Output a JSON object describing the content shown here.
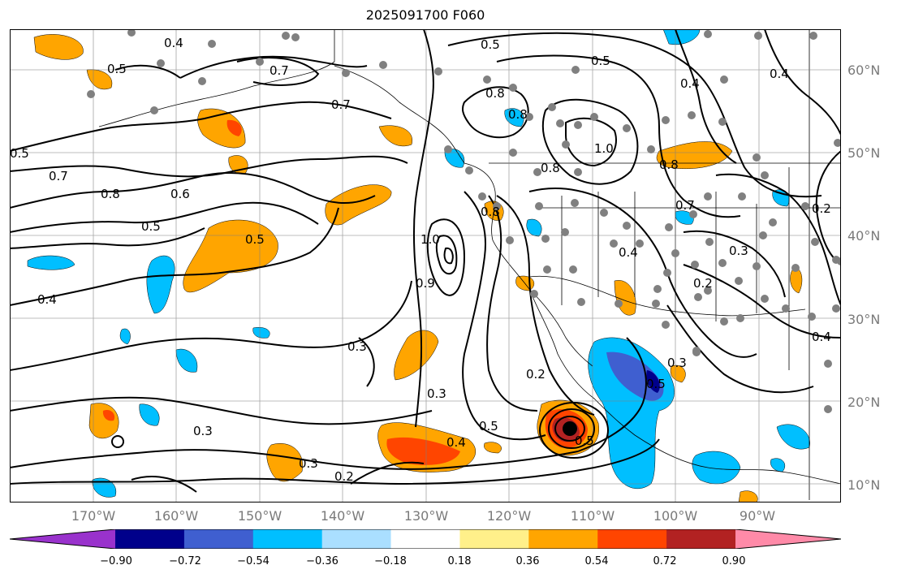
{
  "title": "2025091700 F060",
  "map": {
    "lat_labels": [
      "60°N",
      "50°N",
      "40°N",
      "30°N",
      "20°N",
      "10°N"
    ],
    "lon_labels": [
      "170°W",
      "160°W",
      "150°W",
      "140°W",
      "130°W",
      "120°W",
      "110°W",
      "100°W",
      "90°W"
    ],
    "contour_labels": [
      "0.4",
      "0.5",
      "0.7",
      "0.5",
      "0.7",
      "0.8",
      "0.6",
      "0.5",
      "0.4",
      "0.5",
      "0.8",
      "0.7",
      "0.8",
      "0.8",
      "0.5",
      "1.0",
      "0.5",
      "0.4",
      "0.8",
      "0.7",
      "0.3",
      "0.2",
      "1.0",
      "0.9",
      "0.3",
      "0.3",
      "0.2",
      "0.3",
      "0.5",
      "0.4",
      "0.5",
      "0.3",
      "0.3",
      "0.2",
      "0.4",
      "0.4",
      "0.8",
      "0.5",
      "0.4",
      "0.2"
    ],
    "colors": {
      "ocean": "#ffffff",
      "contour": "#000000",
      "gridline": "#7f7f7f",
      "station": "#808080",
      "positive_light": "#fff08a",
      "positive_orange": "#ffa500",
      "positive_red": "#ff4500",
      "positive_darkred": "#b22222",
      "negative_lightblue": "#aadfff",
      "negative_cyan": "#00bfff",
      "negative_blue": "#3f5fd0",
      "negative_navy": "#00008b"
    }
  },
  "colorbar": {
    "ticks": [
      "−0.90",
      "−0.72",
      "−0.54",
      "−0.36",
      "−0.18",
      "0.18",
      "0.36",
      "0.54",
      "0.72",
      "0.90"
    ],
    "bins": [
      {
        "color": "#9932cc"
      },
      {
        "color": "#00008b"
      },
      {
        "color": "#3f5fd0"
      },
      {
        "color": "#00bfff"
      },
      {
        "color": "#aadfff"
      },
      {
        "color": "#ffffff"
      },
      {
        "color": "#fff08a"
      },
      {
        "color": "#ffa500"
      },
      {
        "color": "#ff4500"
      },
      {
        "color": "#b22222"
      },
      {
        "color": "#ff8aa8"
      }
    ]
  }
}
